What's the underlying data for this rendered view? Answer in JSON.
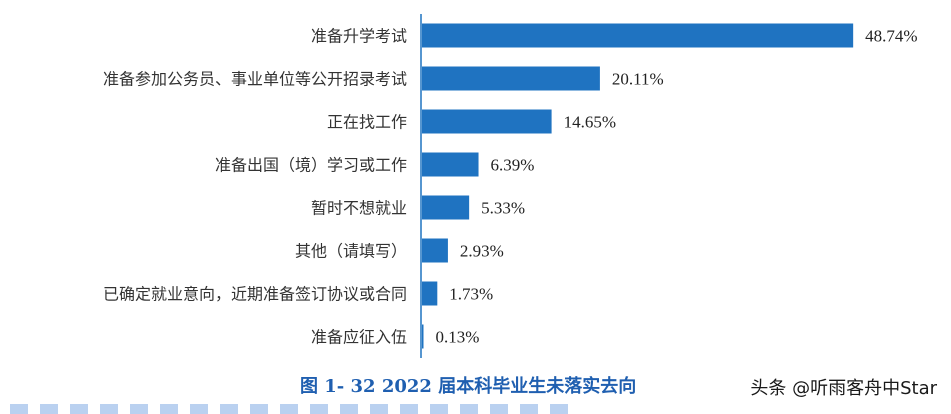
{
  "colors": {
    "bar": "#1f73c1",
    "axis": "#1f73c1",
    "caption": "#1f5fb0"
  },
  "caption": "图 1- 32  2022 届本科毕业生未落实去向",
  "watermark": "头条 @听雨客舟中Star",
  "chart_data": {
    "type": "bar",
    "orientation": "horizontal",
    "title": "",
    "xlabel": "",
    "ylabel": "",
    "xlim": [
      0,
      52
    ],
    "grid": false,
    "categories": [
      "准备升学考试",
      "准备参加公务员、事业单位等公开招录考试",
      "正在找工作",
      "准备出国（境）学习或工作",
      "暂时不想就业",
      "其他（请填写）",
      "已确定就业意向，近期准备签订协议或合同",
      "准备应征入伍"
    ],
    "values": [
      48.74,
      20.11,
      14.65,
      6.39,
      5.33,
      2.93,
      1.73,
      0.13
    ],
    "value_labels": [
      "48.74%",
      "20.11%",
      "14.65%",
      "6.39%",
      "5.33%",
      "2.93%",
      "1.73%",
      "0.13%"
    ]
  }
}
